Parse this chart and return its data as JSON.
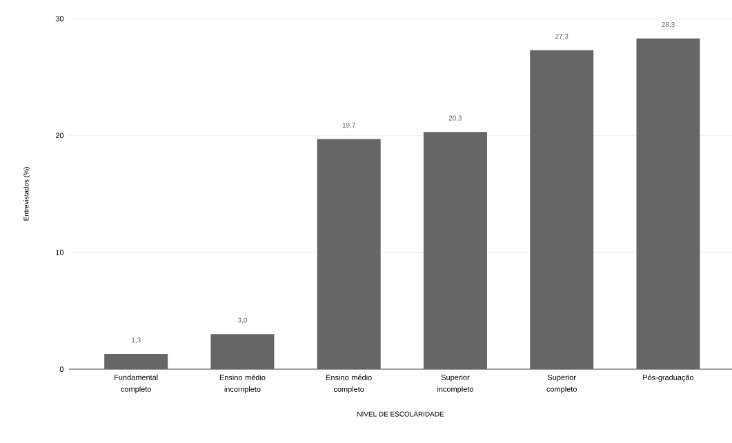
{
  "chart_data": {
    "type": "bar",
    "xlabel": "NÍVEL DE ESCOLARIDADE",
    "ylabel": "Entrevistados (%)",
    "categories": [
      "Fundamental completo",
      "Ensino médio incompleto",
      "Ensino médio completo",
      "Superior incompleto",
      "Superior completo",
      "Pós-graduação"
    ],
    "values": [
      1.3,
      3.0,
      19.7,
      20.3,
      27.3,
      28.3
    ],
    "value_labels": [
      "1,3",
      "3,0",
      "19,7",
      "20,3",
      "27,3",
      "28,3"
    ],
    "color": "#666666",
    "ylim": [
      0,
      30
    ],
    "yticks": [
      0,
      10,
      20,
      30
    ],
    "grid": "y"
  }
}
